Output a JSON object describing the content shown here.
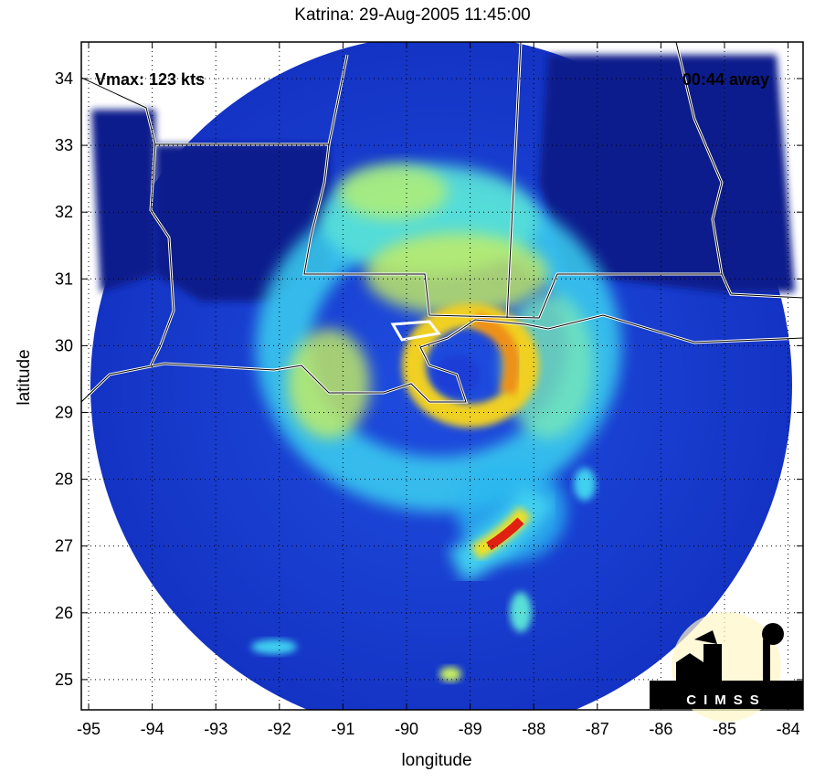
{
  "title": "Katrina: 29-Aug-2005 11:45:00",
  "vmax_label": "Vmax: 123 kts",
  "time_away_label": "00:44 away",
  "x_axis": {
    "label": "longitude",
    "ticks": [
      "-95",
      "-94",
      "-93",
      "-92",
      "-91",
      "-90",
      "-89",
      "-88",
      "-87",
      "-86",
      "-85",
      "-84"
    ]
  },
  "y_axis": {
    "label": "latitude",
    "ticks": [
      "34",
      "33",
      "32",
      "31",
      "30",
      "29",
      "28",
      "27",
      "26",
      "25"
    ]
  },
  "logo": {
    "text": "CIMSS"
  },
  "colors": {
    "background": "#0a1f8a",
    "low": "#1a3cd6",
    "mid": "#35c8f0",
    "high": "#f0e020",
    "peak": "#d81010",
    "boundary": "#ffffff"
  }
}
